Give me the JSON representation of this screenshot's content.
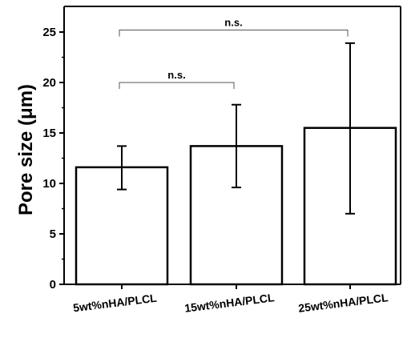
{
  "chart_data": {
    "type": "bar",
    "title": "",
    "xlabel": "",
    "ylabel": "Pore size (μm)",
    "ylim": [
      0,
      27.5
    ],
    "yticks": [
      0,
      5,
      10,
      15,
      20,
      25
    ],
    "grid": false,
    "categories": [
      "5wt%nHA/PLCL",
      "15wt%nHA/PLCL",
      "25wt%nHA/PLCL"
    ],
    "values": [
      11.6,
      13.7,
      15.5
    ],
    "error_low": [
      9.4,
      9.6,
      7.0
    ],
    "error_high": [
      13.7,
      17.8,
      23.9
    ],
    "significance": [
      {
        "from": 0,
        "to": 1,
        "label": "n.s.",
        "y": 20.0
      },
      {
        "from": 0,
        "to": 2,
        "label": "n.s.",
        "y": 25.2
      }
    ]
  }
}
